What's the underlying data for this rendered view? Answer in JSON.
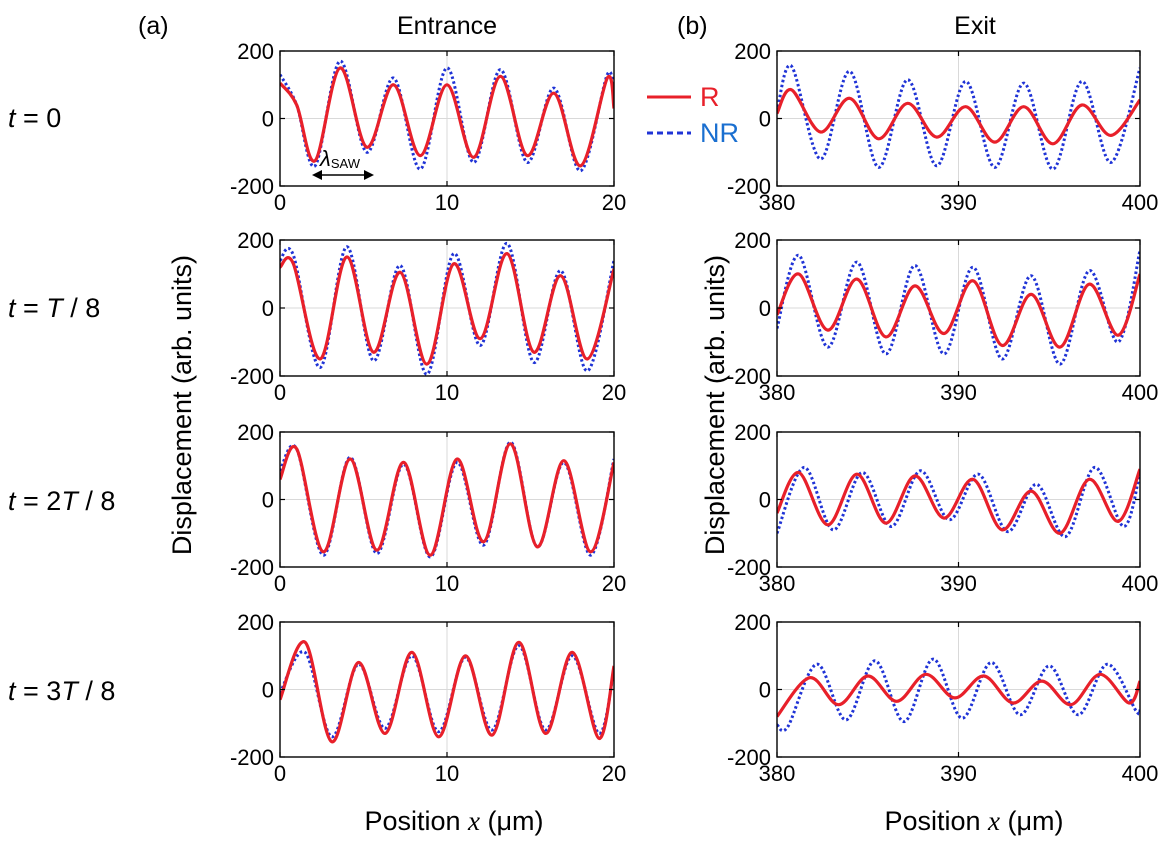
{
  "figure": {
    "panel_a_label": "(a)",
    "panel_b_label": "(b)",
    "col_a_title": "Entrance",
    "col_b_title": "Exit",
    "ylabel": "Displacement (arb. units)",
    "xlabel_prefix": "Position ",
    "xlabel_var": "x",
    "xlabel_unit": " (μm)",
    "wavelength_symbol": "λ",
    "wavelength_subscript": "SAW",
    "row_labels": [
      {
        "t": "t",
        "eq": " = 0"
      },
      {
        "t": "t",
        "eq": " = ",
        "T": "T",
        "rest": " / 8"
      },
      {
        "t": "t",
        "eq": " = 2",
        "T": "T",
        "rest": " / 8"
      },
      {
        "t": "t",
        "eq": " = 3",
        "T": "T",
        "rest": " / 8"
      }
    ]
  },
  "legend": {
    "items": [
      {
        "label": "R",
        "color": "#e8202a",
        "style": "solid"
      },
      {
        "label": "NR",
        "color": "#1f33d6",
        "style": "dotted"
      }
    ],
    "text_color_R": "#e8202a",
    "text_color_NR": "#1a6fd0"
  },
  "chart_data": [
    {
      "type": "line",
      "panel": "a",
      "row": 0,
      "xlim": [
        0,
        20
      ],
      "ylim": [
        -200,
        200
      ],
      "xticks": [
        0,
        10,
        20
      ],
      "yticks": [
        -200,
        0,
        200
      ],
      "series": [
        {
          "name": "R",
          "color": "#e8202a",
          "x": [
            0,
            1,
            2.1,
            3.6,
            5.2,
            6.8,
            8.4,
            10,
            11.6,
            13.2,
            14.8,
            16.4,
            18,
            19.6,
            20
          ],
          "y": [
            105,
            40,
            -125,
            150,
            -85,
            100,
            -110,
            100,
            -115,
            125,
            -110,
            75,
            -140,
            120,
            30
          ]
        },
        {
          "name": "NR",
          "color": "#1f33d6",
          "x": [
            0,
            1,
            2.1,
            3.6,
            5.2,
            6.8,
            8.4,
            10,
            11.6,
            13.2,
            14.8,
            16.4,
            18,
            19.6,
            20
          ],
          "y": [
            130,
            40,
            -140,
            170,
            -100,
            120,
            -150,
            150,
            -130,
            145,
            -130,
            90,
            -155,
            130,
            60
          ]
        }
      ]
    },
    {
      "type": "line",
      "panel": "a",
      "row": 1,
      "xlim": [
        0,
        20
      ],
      "ylim": [
        -200,
        200
      ],
      "xticks": [
        0,
        10,
        20
      ],
      "yticks": [
        -200,
        0,
        200
      ],
      "series": [
        {
          "name": "R",
          "color": "#e8202a",
          "x": [
            0,
            0.8,
            2.4,
            4,
            5.6,
            7.2,
            8.8,
            10.4,
            12,
            13.6,
            15.2,
            16.8,
            18.4,
            20
          ],
          "y": [
            120,
            130,
            -150,
            150,
            -130,
            105,
            -165,
            130,
            -90,
            160,
            -130,
            95,
            -150,
            115
          ]
        },
        {
          "name": "NR",
          "color": "#1f33d6",
          "x": [
            0,
            0.8,
            2.4,
            4,
            5.6,
            7.2,
            8.8,
            10.4,
            12,
            13.6,
            15.2,
            16.8,
            18.4,
            20
          ],
          "y": [
            140,
            155,
            -175,
            180,
            -155,
            125,
            -195,
            160,
            -110,
            190,
            -160,
            110,
            -185,
            140
          ]
        }
      ]
    },
    {
      "type": "line",
      "panel": "a",
      "row": 2,
      "xlim": [
        0,
        20
      ],
      "ylim": [
        -200,
        200
      ],
      "xticks": [
        0,
        10,
        20
      ],
      "yticks": [
        -200,
        0,
        200
      ],
      "series": [
        {
          "name": "R",
          "color": "#e8202a",
          "x": [
            0,
            1,
            2.6,
            4.2,
            5.8,
            7.4,
            9,
            10.6,
            12.2,
            13.8,
            15.4,
            17,
            18.6,
            20
          ],
          "y": [
            60,
            150,
            -155,
            120,
            -150,
            110,
            -165,
            120,
            -125,
            165,
            -140,
            115,
            -155,
            110
          ]
        },
        {
          "name": "NR",
          "color": "#1f33d6",
          "x": [
            0,
            1,
            2.6,
            4.2,
            5.8,
            7.4,
            9,
            10.6,
            12.2,
            13.8,
            15.4,
            17,
            18.6,
            20
          ],
          "y": [
            85,
            150,
            -165,
            125,
            -160,
            105,
            -170,
            110,
            -135,
            170,
            -140,
            110,
            -165,
            120
          ]
        }
      ]
    },
    {
      "type": "line",
      "panel": "a",
      "row": 3,
      "xlim": [
        0,
        20
      ],
      "ylim": [
        -200,
        200
      ],
      "xticks": [
        0,
        10,
        20
      ],
      "yticks": [
        -200,
        0,
        200
      ],
      "series": [
        {
          "name": "R",
          "color": "#e8202a",
          "x": [
            0,
            1.5,
            3.1,
            4.7,
            6.3,
            7.9,
            9.5,
            11.1,
            12.7,
            14.3,
            15.9,
            17.5,
            19.1,
            20
          ],
          "y": [
            -30,
            140,
            -155,
            80,
            -130,
            110,
            -140,
            100,
            -135,
            140,
            -130,
            110,
            -145,
            70
          ]
        },
        {
          "name": "NR",
          "color": "#1f33d6",
          "x": [
            0,
            1.5,
            3.1,
            4.7,
            6.3,
            7.9,
            9.5,
            11.1,
            12.7,
            14.3,
            15.9,
            17.5,
            19.1,
            20
          ],
          "y": [
            -10,
            110,
            -140,
            75,
            -115,
            100,
            -125,
            95,
            -120,
            130,
            -120,
            100,
            -130,
            60
          ]
        }
      ]
    },
    {
      "type": "line",
      "panel": "b",
      "row": 0,
      "xlim": [
        380,
        400
      ],
      "ylim": [
        -200,
        200
      ],
      "xticks": [
        380,
        390,
        400
      ],
      "yticks": [
        -200,
        0,
        200
      ],
      "series": [
        {
          "name": "R",
          "color": "#e8202a",
          "x": [
            380,
            380.8,
            382.4,
            384,
            385.6,
            387.2,
            388.8,
            390.4,
            392,
            393.6,
            395.2,
            396.8,
            398.4,
            400
          ],
          "y": [
            15,
            85,
            -40,
            60,
            -60,
            45,
            -55,
            35,
            -70,
            35,
            -75,
            40,
            -50,
            55
          ]
        },
        {
          "name": "NR",
          "color": "#1f33d6",
          "x": [
            380,
            380.8,
            382.4,
            384,
            385.6,
            387.2,
            388.8,
            390.4,
            392,
            393.6,
            395.2,
            396.8,
            398.4,
            400
          ],
          "y": [
            20,
            155,
            -120,
            140,
            -145,
            115,
            -140,
            110,
            -145,
            105,
            -150,
            110,
            -130,
            150
          ]
        }
      ]
    },
    {
      "type": "line",
      "panel": "b",
      "row": 1,
      "xlim": [
        380,
        400
      ],
      "ylim": [
        -200,
        200
      ],
      "xticks": [
        380,
        390,
        400
      ],
      "yticks": [
        -200,
        0,
        200
      ],
      "series": [
        {
          "name": "R",
          "color": "#e8202a",
          "x": [
            380,
            381.2,
            382.8,
            384.4,
            386,
            387.6,
            389.2,
            390.8,
            392.4,
            394,
            395.6,
            397.2,
            398.8,
            400
          ],
          "y": [
            -20,
            100,
            -65,
            85,
            -85,
            65,
            -75,
            80,
            -110,
            40,
            -115,
            70,
            -80,
            100
          ]
        },
        {
          "name": "NR",
          "color": "#1f33d6",
          "x": [
            380,
            381.2,
            382.8,
            384.4,
            386,
            387.6,
            389.2,
            390.8,
            392.4,
            394,
            395.6,
            397.2,
            398.8,
            400
          ],
          "y": [
            -60,
            155,
            -115,
            135,
            -135,
            125,
            -135,
            120,
            -150,
            95,
            -165,
            110,
            -100,
            170
          ]
        }
      ]
    },
    {
      "type": "line",
      "panel": "b",
      "row": 2,
      "xlim": [
        380,
        400
      ],
      "ylim": [
        -200,
        200
      ],
      "xticks": [
        380,
        390,
        400
      ],
      "yticks": [
        -200,
        0,
        200
      ],
      "series": [
        {
          "name": "R",
          "color": "#e8202a",
          "x": [
            380,
            381.2,
            382.8,
            384.4,
            386,
            387.6,
            389.2,
            390.8,
            392.4,
            394,
            395.6,
            397.2,
            398.8,
            400
          ],
          "y": [
            -40,
            80,
            -75,
            75,
            -70,
            70,
            -55,
            60,
            -90,
            25,
            -100,
            60,
            -65,
            90
          ]
        },
        {
          "name": "NR",
          "color": "#1f33d6",
          "x": [
            380,
            381.5,
            383.1,
            384.7,
            386.3,
            387.9,
            389.5,
            391.1,
            392.7,
            394.3,
            395.9,
            397.5,
            399.1,
            400
          ],
          "y": [
            -100,
            95,
            -90,
            80,
            -80,
            85,
            -60,
            75,
            -95,
            45,
            -110,
            95,
            -80,
            80
          ]
        }
      ]
    },
    {
      "type": "line",
      "panel": "b",
      "row": 3,
      "xlim": [
        380,
        400
      ],
      "ylim": [
        -200,
        200
      ],
      "xticks": [
        380,
        390,
        400
      ],
      "yticks": [
        -200,
        0,
        200
      ],
      "series": [
        {
          "name": "R",
          "color": "#e8202a",
          "x": [
            380,
            381.8,
            383.4,
            385,
            386.6,
            388.2,
            389.8,
            391.4,
            393,
            394.6,
            396.2,
            397.8,
            399.4,
            400
          ],
          "y": [
            -80,
            35,
            -45,
            40,
            -35,
            45,
            -25,
            40,
            -40,
            25,
            -45,
            45,
            -40,
            25
          ]
        },
        {
          "name": "NR",
          "color": "#1f33d6",
          "x": [
            380,
            380.6,
            382.2,
            383.8,
            385.4,
            387,
            388.6,
            390.2,
            391.8,
            393.4,
            395,
            396.6,
            398.2,
            399.8,
            400
          ],
          "y": [
            -105,
            -110,
            75,
            -90,
            85,
            -95,
            90,
            -85,
            80,
            -75,
            70,
            -75,
            75,
            -65,
            -55
          ]
        }
      ]
    }
  ]
}
